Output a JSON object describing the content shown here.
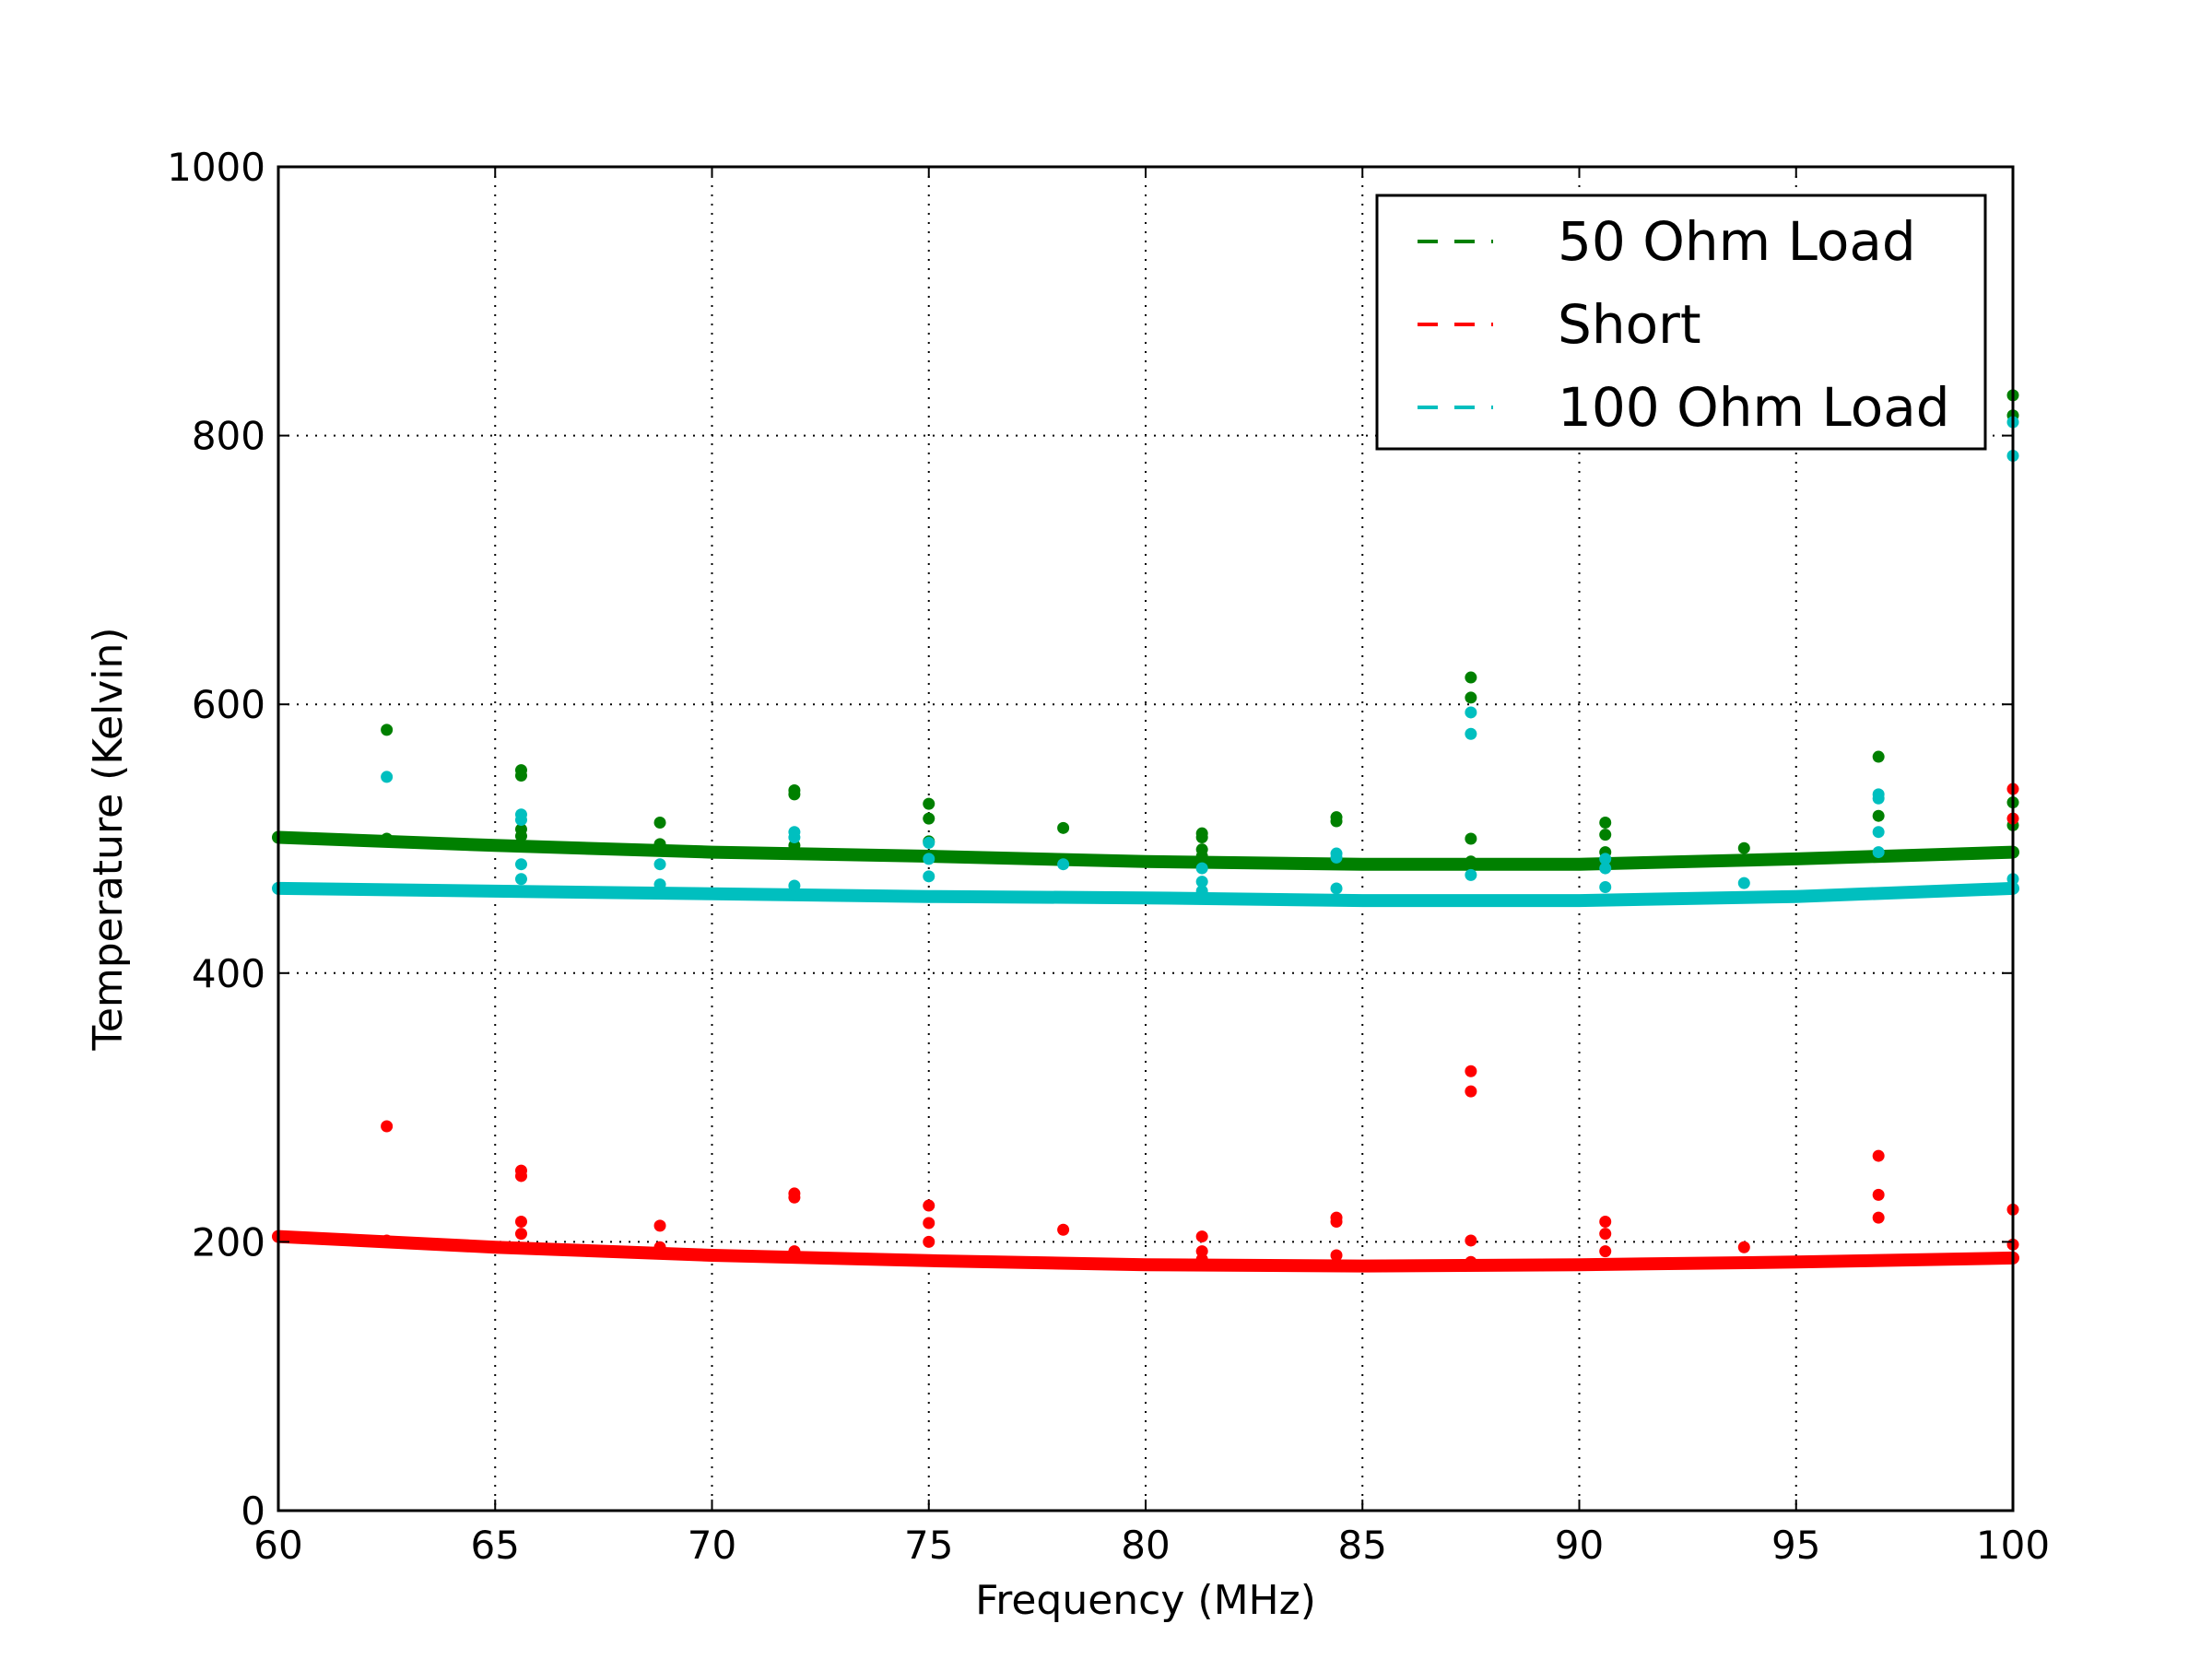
{
  "chart_data": {
    "type": "scatter",
    "xlabel": "Frequency (MHz)",
    "ylabel": "Temperature (Kelvin)",
    "xlim": [
      60,
      100
    ],
    "ylim": [
      0,
      1000
    ],
    "xticks": [
      60,
      65,
      70,
      75,
      80,
      85,
      90,
      95,
      100
    ],
    "yticks": [
      0,
      200,
      400,
      600,
      800,
      1000
    ],
    "grid": true,
    "legend_position": "top-right",
    "series": [
      {
        "name": "50 Ohm Load",
        "color": "#008000",
        "baseline": [
          [
            60,
            501
          ],
          [
            65,
            495
          ],
          [
            70,
            490
          ],
          [
            75,
            487
          ],
          [
            80,
            483
          ],
          [
            85,
            481
          ],
          [
            90,
            481
          ],
          [
            95,
            485
          ],
          [
            100,
            490
          ]
        ],
        "spikes": [
          [
            62.5,
            581
          ],
          [
            62.5,
            500
          ],
          [
            65.6,
            551
          ],
          [
            65.6,
            547
          ],
          [
            65.6,
            507
          ],
          [
            65.6,
            502
          ],
          [
            68.8,
            512
          ],
          [
            68.8,
            496
          ],
          [
            71.9,
            536
          ],
          [
            71.9,
            533
          ],
          [
            71.9,
            495
          ],
          [
            75,
            526
          ],
          [
            75,
            515
          ],
          [
            75,
            498
          ],
          [
            78.1,
            508
          ],
          [
            81.3,
            504
          ],
          [
            81.3,
            501
          ],
          [
            81.3,
            492
          ],
          [
            81.3,
            487
          ],
          [
            84.4,
            516
          ],
          [
            84.4,
            513
          ],
          [
            87.5,
            620
          ],
          [
            87.5,
            605
          ],
          [
            87.5,
            500
          ],
          [
            87.5,
            483
          ],
          [
            90.6,
            512
          ],
          [
            90.6,
            503
          ],
          [
            90.6,
            490
          ],
          [
            93.8,
            493
          ],
          [
            96.9,
            561
          ],
          [
            96.9,
            517
          ],
          [
            100,
            830
          ],
          [
            100,
            815
          ],
          [
            100,
            527
          ],
          [
            100,
            510
          ]
        ]
      },
      {
        "name": "Short",
        "color": "#ff0000",
        "baseline": [
          [
            60,
            204
          ],
          [
            65,
            196
          ],
          [
            70,
            190
          ],
          [
            75,
            186
          ],
          [
            80,
            183
          ],
          [
            85,
            182
          ],
          [
            90,
            183
          ],
          [
            95,
            185
          ],
          [
            100,
            188
          ]
        ],
        "spikes": [
          [
            62.5,
            286
          ],
          [
            62.5,
            201
          ],
          [
            65.6,
            253
          ],
          [
            65.6,
            249
          ],
          [
            65.6,
            215
          ],
          [
            65.6,
            206
          ],
          [
            68.8,
            212
          ],
          [
            68.8,
            196
          ],
          [
            71.9,
            236
          ],
          [
            71.9,
            233
          ],
          [
            71.9,
            193
          ],
          [
            75,
            227
          ],
          [
            75,
            214
          ],
          [
            75,
            200
          ],
          [
            78.1,
            209
          ],
          [
            81.3,
            204
          ],
          [
            81.3,
            193
          ],
          [
            81.3,
            187
          ],
          [
            84.4,
            218
          ],
          [
            84.4,
            215
          ],
          [
            84.4,
            190
          ],
          [
            87.5,
            327
          ],
          [
            87.5,
            312
          ],
          [
            87.5,
            201
          ],
          [
            87.5,
            185
          ],
          [
            90.6,
            215
          ],
          [
            90.6,
            206
          ],
          [
            90.6,
            193
          ],
          [
            93.8,
            196
          ],
          [
            96.9,
            264
          ],
          [
            96.9,
            235
          ],
          [
            96.9,
            218
          ],
          [
            100,
            537
          ],
          [
            100,
            515
          ],
          [
            100,
            224
          ],
          [
            100,
            198
          ]
        ]
      },
      {
        "name": "100 Ohm Load",
        "color": "#00bfbf",
        "baseline": [
          [
            60,
            463
          ],
          [
            65,
            461
          ],
          [
            70,
            459
          ],
          [
            75,
            457
          ],
          [
            80,
            456
          ],
          [
            85,
            454
          ],
          [
            90,
            454
          ],
          [
            95,
            457
          ],
          [
            100,
            463
          ]
        ],
        "spikes": [
          [
            62.5,
            546
          ],
          [
            65.6,
            518
          ],
          [
            65.6,
            514
          ],
          [
            65.6,
            481
          ],
          [
            65.6,
            470
          ],
          [
            68.8,
            481
          ],
          [
            68.8,
            466
          ],
          [
            71.9,
            505
          ],
          [
            71.9,
            501
          ],
          [
            71.9,
            465
          ],
          [
            75,
            497
          ],
          [
            75,
            485
          ],
          [
            75,
            472
          ],
          [
            78.1,
            481
          ],
          [
            81.3,
            478
          ],
          [
            81.3,
            468
          ],
          [
            81.3,
            461
          ],
          [
            84.4,
            489
          ],
          [
            84.4,
            486
          ],
          [
            84.4,
            463
          ],
          [
            87.5,
            594
          ],
          [
            87.5,
            578
          ],
          [
            87.5,
            473
          ],
          [
            90.6,
            485
          ],
          [
            90.6,
            478
          ],
          [
            90.6,
            464
          ],
          [
            93.8,
            467
          ],
          [
            96.9,
            533
          ],
          [
            96.9,
            530
          ],
          [
            96.9,
            505
          ],
          [
            96.9,
            490
          ],
          [
            100,
            810
          ],
          [
            100,
            785
          ],
          [
            100,
            470
          ]
        ]
      }
    ]
  }
}
